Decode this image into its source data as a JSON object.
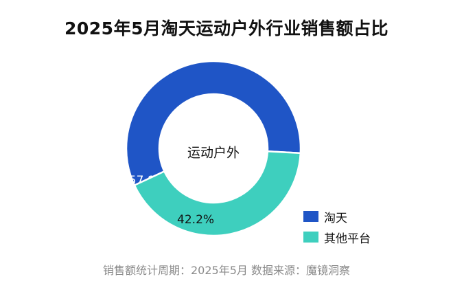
{
  "title": "2025年5月淘天运动户外行业销售额占比",
  "source_note": "销售额统计周期：2025年5月 数据来源：魔镜洞察",
  "center_label": "运动户外",
  "colors": {
    "taotian": "#1f55c6",
    "other": "#3ecfbe"
  },
  "chart_data": {
    "type": "pie",
    "title": "2025年5月淘天运动户外行业销售额占比",
    "categories": [
      "淘天",
      "其他平台"
    ],
    "values": [
      57.8,
      42.2
    ],
    "value_labels": [
      "57.8%",
      "42.2%"
    ],
    "unit": "%",
    "donut": true,
    "legend_position": "bottom-right"
  }
}
